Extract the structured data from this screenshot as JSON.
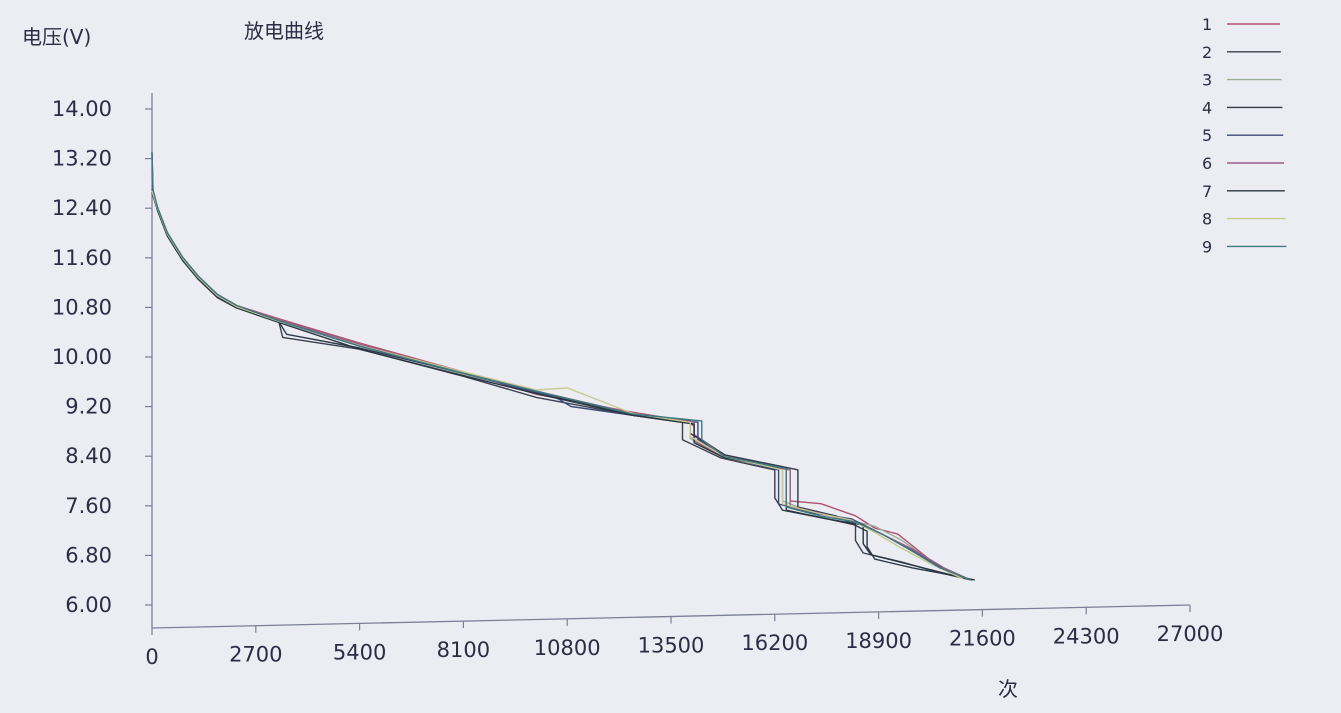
{
  "chart_data": {
    "type": "line",
    "title": "放电曲线",
    "xlabel": "次",
    "ylabel": "电压(V)",
    "xlim": [
      0,
      27000
    ],
    "ylim": [
      6.0,
      14.0
    ],
    "x_ticks": [
      "0",
      "2700",
      "5400",
      "8100",
      "10800",
      "13500",
      "16200",
      "18900",
      "21600",
      "24300",
      "27000"
    ],
    "y_ticks": [
      "14.00",
      "13.20",
      "12.40",
      "11.60",
      "10.80",
      "10.00",
      "9.20",
      "8.40",
      "7.60",
      "6.80",
      "6.00"
    ],
    "legend_position": "top-right",
    "series": [
      {
        "name": "1",
        "color": "#b0506e",
        "values": [
          [
            0,
            12.7
          ],
          [
            150,
            12.4
          ],
          [
            400,
            12.0
          ],
          [
            800,
            11.6
          ],
          [
            1200,
            11.3
          ],
          [
            1700,
            11.0
          ],
          [
            2200,
            10.82
          ],
          [
            3300,
            10.6
          ],
          [
            5400,
            10.2
          ],
          [
            8100,
            9.72
          ],
          [
            10000,
            9.35
          ],
          [
            12500,
            9.05
          ],
          [
            13900,
            8.9
          ],
          [
            14100,
            8.82
          ],
          [
            14100,
            8.68
          ],
          [
            14900,
            8.35
          ],
          [
            16600,
            8.1
          ],
          [
            16600,
            7.6
          ],
          [
            17400,
            7.55
          ],
          [
            18300,
            7.35
          ],
          [
            18800,
            7.15
          ],
          [
            19400,
            7.05
          ],
          [
            20000,
            6.75
          ],
          [
            20500,
            6.5
          ],
          [
            21000,
            6.35
          ],
          [
            21400,
            6.3
          ]
        ]
      },
      {
        "name": "2",
        "color": "#3a4050",
        "values": [
          [
            0,
            12.65
          ],
          [
            150,
            12.35
          ],
          [
            400,
            11.95
          ],
          [
            800,
            11.55
          ],
          [
            1200,
            11.25
          ],
          [
            1700,
            10.97
          ],
          [
            2200,
            10.8
          ],
          [
            3300,
            10.55
          ],
          [
            3400,
            10.3
          ],
          [
            5400,
            10.1
          ],
          [
            8100,
            9.65
          ],
          [
            10000,
            9.3
          ],
          [
            12500,
            9.0
          ],
          [
            13800,
            8.88
          ],
          [
            13800,
            8.6
          ],
          [
            14800,
            8.3
          ],
          [
            16200,
            8.1
          ],
          [
            16200,
            7.65
          ],
          [
            16400,
            7.45
          ],
          [
            17600,
            7.3
          ],
          [
            18300,
            7.2
          ],
          [
            18300,
            6.95
          ],
          [
            18500,
            6.75
          ],
          [
            19500,
            6.6
          ],
          [
            20500,
            6.42
          ],
          [
            21300,
            6.3
          ]
        ]
      },
      {
        "name": "3",
        "color": "#9aae96",
        "values": [
          [
            0,
            12.68
          ],
          [
            150,
            12.38
          ],
          [
            400,
            11.98
          ],
          [
            800,
            11.58
          ],
          [
            1200,
            11.28
          ],
          [
            1700,
            10.98
          ],
          [
            2200,
            10.8
          ],
          [
            3300,
            10.58
          ],
          [
            5400,
            10.15
          ],
          [
            8100,
            9.68
          ],
          [
            10000,
            9.4
          ],
          [
            12500,
            9.03
          ],
          [
            14000,
            8.88
          ],
          [
            14000,
            8.62
          ],
          [
            14900,
            8.3
          ],
          [
            16400,
            8.12
          ],
          [
            16400,
            7.6
          ],
          [
            17000,
            7.45
          ],
          [
            18000,
            7.3
          ],
          [
            18800,
            7.18
          ],
          [
            19500,
            6.95
          ],
          [
            20400,
            6.55
          ],
          [
            21200,
            6.32
          ]
        ]
      },
      {
        "name": "4",
        "color": "#2f3a4a",
        "values": [
          [
            0,
            12.7
          ],
          [
            150,
            12.4
          ],
          [
            400,
            12.0
          ],
          [
            800,
            11.6
          ],
          [
            1200,
            11.3
          ],
          [
            1700,
            11.0
          ],
          [
            2200,
            10.82
          ],
          [
            3300,
            10.55
          ],
          [
            3500,
            10.35
          ],
          [
            5400,
            10.12
          ],
          [
            8100,
            9.7
          ],
          [
            10000,
            9.38
          ],
          [
            12500,
            9.02
          ],
          [
            14000,
            8.9
          ],
          [
            14000,
            8.7
          ],
          [
            14900,
            8.35
          ],
          [
            16800,
            8.1
          ],
          [
            16800,
            7.5
          ],
          [
            17800,
            7.35
          ],
          [
            18600,
            7.1
          ],
          [
            18600,
            6.85
          ],
          [
            18800,
            6.65
          ],
          [
            19800,
            6.5
          ],
          [
            20800,
            6.38
          ],
          [
            21400,
            6.3
          ]
        ]
      },
      {
        "name": "5",
        "color": "#3c4a78",
        "values": [
          [
            0,
            12.66
          ],
          [
            150,
            12.36
          ],
          [
            400,
            11.96
          ],
          [
            800,
            11.56
          ],
          [
            1200,
            11.26
          ],
          [
            1700,
            10.96
          ],
          [
            2200,
            10.8
          ],
          [
            3300,
            10.56
          ],
          [
            5400,
            10.15
          ],
          [
            8100,
            9.7
          ],
          [
            10500,
            9.3
          ],
          [
            10900,
            9.15
          ],
          [
            12500,
            9.0
          ],
          [
            14200,
            8.88
          ],
          [
            14200,
            8.6
          ],
          [
            14900,
            8.32
          ],
          [
            16300,
            8.1
          ],
          [
            16300,
            7.55
          ],
          [
            17200,
            7.4
          ],
          [
            18200,
            7.3
          ],
          [
            18900,
            7.08
          ],
          [
            19600,
            6.85
          ],
          [
            20400,
            6.55
          ],
          [
            21200,
            6.32
          ]
        ]
      },
      {
        "name": "6",
        "color": "#9a6088",
        "values": [
          [
            0,
            12.7
          ],
          [
            150,
            12.4
          ],
          [
            400,
            12.0
          ],
          [
            800,
            11.6
          ],
          [
            1200,
            11.3
          ],
          [
            1700,
            11.0
          ],
          [
            2200,
            10.82
          ],
          [
            3300,
            10.58
          ],
          [
            5400,
            10.18
          ],
          [
            8100,
            9.7
          ],
          [
            10000,
            9.4
          ],
          [
            12500,
            9.03
          ],
          [
            14100,
            8.88
          ],
          [
            14100,
            8.58
          ],
          [
            14900,
            8.3
          ],
          [
            16600,
            8.1
          ],
          [
            16600,
            7.5
          ],
          [
            17500,
            7.38
          ],
          [
            18400,
            7.22
          ],
          [
            19000,
            7.05
          ],
          [
            19800,
            6.8
          ],
          [
            20600,
            6.5
          ],
          [
            21300,
            6.3
          ]
        ]
      },
      {
        "name": "7",
        "color": "#283540",
        "values": [
          [
            0,
            13.3
          ],
          [
            25,
            12.65
          ],
          [
            150,
            12.35
          ],
          [
            400,
            11.95
          ],
          [
            800,
            11.55
          ],
          [
            1200,
            11.25
          ],
          [
            1700,
            10.95
          ],
          [
            2200,
            10.78
          ],
          [
            3300,
            10.54
          ],
          [
            5400,
            10.1
          ],
          [
            8100,
            9.66
          ],
          [
            10000,
            9.36
          ],
          [
            12500,
            9.0
          ],
          [
            14100,
            8.85
          ],
          [
            14100,
            8.55
          ],
          [
            14900,
            8.3
          ],
          [
            16500,
            8.12
          ],
          [
            16500,
            7.45
          ],
          [
            17600,
            7.3
          ],
          [
            18500,
            7.2
          ],
          [
            18500,
            6.9
          ],
          [
            18700,
            6.72
          ],
          [
            19700,
            6.56
          ],
          [
            20700,
            6.4
          ],
          [
            21350,
            6.3
          ]
        ]
      },
      {
        "name": "8",
        "color": "#c8c890",
        "values": [
          [
            0,
            12.68
          ],
          [
            150,
            12.38
          ],
          [
            400,
            11.98
          ],
          [
            800,
            11.58
          ],
          [
            1200,
            11.28
          ],
          [
            1700,
            10.98
          ],
          [
            2200,
            10.8
          ],
          [
            3300,
            10.56
          ],
          [
            5400,
            10.16
          ],
          [
            8100,
            9.72
          ],
          [
            10000,
            9.42
          ],
          [
            10800,
            9.45
          ],
          [
            12500,
            9.03
          ],
          [
            14000,
            8.88
          ],
          [
            14000,
            8.65
          ],
          [
            14900,
            8.32
          ],
          [
            16400,
            8.1
          ],
          [
            16400,
            7.55
          ],
          [
            17300,
            7.4
          ],
          [
            18200,
            7.28
          ],
          [
            18800,
            7.08
          ],
          [
            19500,
            6.82
          ],
          [
            20300,
            6.55
          ],
          [
            21100,
            6.32
          ]
        ]
      },
      {
        "name": "9",
        "color": "#3f7a82",
        "values": [
          [
            0,
            13.3
          ],
          [
            25,
            12.7
          ],
          [
            150,
            12.4
          ],
          [
            400,
            12.0
          ],
          [
            800,
            11.6
          ],
          [
            1200,
            11.3
          ],
          [
            1700,
            11.0
          ],
          [
            2200,
            10.82
          ],
          [
            3300,
            10.57
          ],
          [
            5400,
            10.15
          ],
          [
            8100,
            9.7
          ],
          [
            10000,
            9.4
          ],
          [
            12500,
            9.02
          ],
          [
            14300,
            8.9
          ],
          [
            14300,
            8.6
          ],
          [
            14900,
            8.32
          ],
          [
            16500,
            8.12
          ],
          [
            16500,
            7.5
          ],
          [
            17400,
            7.35
          ],
          [
            18300,
            7.25
          ],
          [
            19000,
            7.05
          ],
          [
            19700,
            6.8
          ],
          [
            20500,
            6.5
          ],
          [
            21300,
            6.3
          ]
        ]
      }
    ]
  }
}
